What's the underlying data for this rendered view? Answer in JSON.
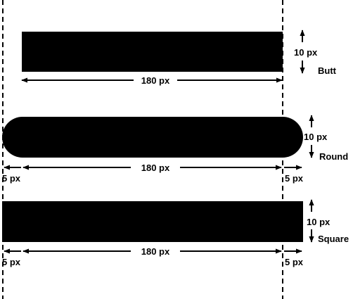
{
  "diagram": {
    "lines": [
      {
        "cap": "Butt",
        "length_label": "180 px",
        "thickness_label": "10 px"
      },
      {
        "cap": "Round",
        "length_label": "180 px",
        "thickness_label": "10 px",
        "extension_label_left": "5 px",
        "extension_label_right": "5 px"
      },
      {
        "cap": "Square",
        "length_label": "180 px",
        "thickness_label": "10 px",
        "extension_label_left": "5 px",
        "extension_label_right": "5 px"
      }
    ],
    "colors": {
      "line": "#000000",
      "background": "#ffffff"
    }
  }
}
